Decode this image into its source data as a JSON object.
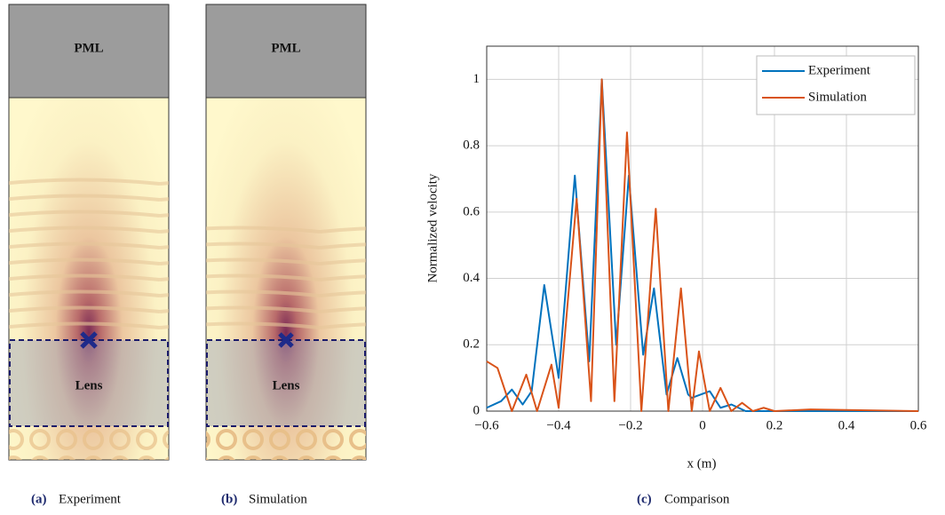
{
  "panels": [
    {
      "pml": "PML",
      "lens": "Lens",
      "caption_label": "(a)",
      "caption": "Experiment"
    },
    {
      "pml": "PML",
      "lens": "Lens",
      "caption_label": "(b)",
      "caption": "Simulation"
    }
  ],
  "chart_caption_label": "(c)",
  "chart_caption": "Comparison",
  "chart_data": {
    "type": "line",
    "xlabel": "x (m)",
    "ylabel": "Normalized velocity",
    "xlim": [
      -0.6,
      0.6
    ],
    "ylim": [
      0,
      1.1
    ],
    "xticks": [
      {
        "value": -0.6,
        "label": "−0.6"
      },
      {
        "value": -0.4,
        "label": "−0.4"
      },
      {
        "value": -0.2,
        "label": "−0.2"
      },
      0,
      0.2,
      0.4,
      0.6
    ],
    "yticks": [
      0,
      0.2,
      0.4,
      0.6,
      0.8,
      1
    ],
    "grid": true,
    "legend": "upper right",
    "series": [
      {
        "name": "Experiment",
        "color": "#0072bd",
        "x": [
          -0.6,
          -0.56,
          -0.53,
          -0.5,
          -0.475,
          -0.44,
          -0.4,
          -0.355,
          -0.315,
          -0.28,
          -0.24,
          -0.205,
          -0.165,
          -0.135,
          -0.1,
          -0.07,
          -0.04,
          -0.03,
          0.02,
          0.05,
          0.08,
          0.12,
          0.6
        ],
        "values": [
          0.01,
          0.03,
          0.065,
          0.02,
          0.06,
          0.38,
          0.1,
          0.71,
          0.15,
          1.0,
          0.2,
          0.71,
          0.17,
          0.37,
          0.05,
          0.16,
          0.05,
          0.04,
          0.06,
          0.01,
          0.02,
          0,
          0
        ]
      },
      {
        "name": "Simulation",
        "color": "#d95319",
        "x": [
          -0.6,
          -0.57,
          -0.53,
          -0.49,
          -0.46,
          -0.42,
          -0.4,
          -0.35,
          -0.31,
          -0.28,
          -0.245,
          -0.21,
          -0.17,
          -0.13,
          -0.095,
          -0.06,
          -0.03,
          -0.01,
          0.02,
          0.05,
          0.08,
          0.11,
          0.14,
          0.17,
          0.2,
          0.3,
          0.6
        ],
        "values": [
          0.15,
          0.13,
          0,
          0.11,
          0,
          0.14,
          0.01,
          0.64,
          0.03,
          1.0,
          0.03,
          0.84,
          0,
          0.61,
          0,
          0.37,
          0,
          0.18,
          0,
          0.07,
          0,
          0.025,
          0,
          0.01,
          0,
          0.005,
          0
        ]
      }
    ]
  }
}
